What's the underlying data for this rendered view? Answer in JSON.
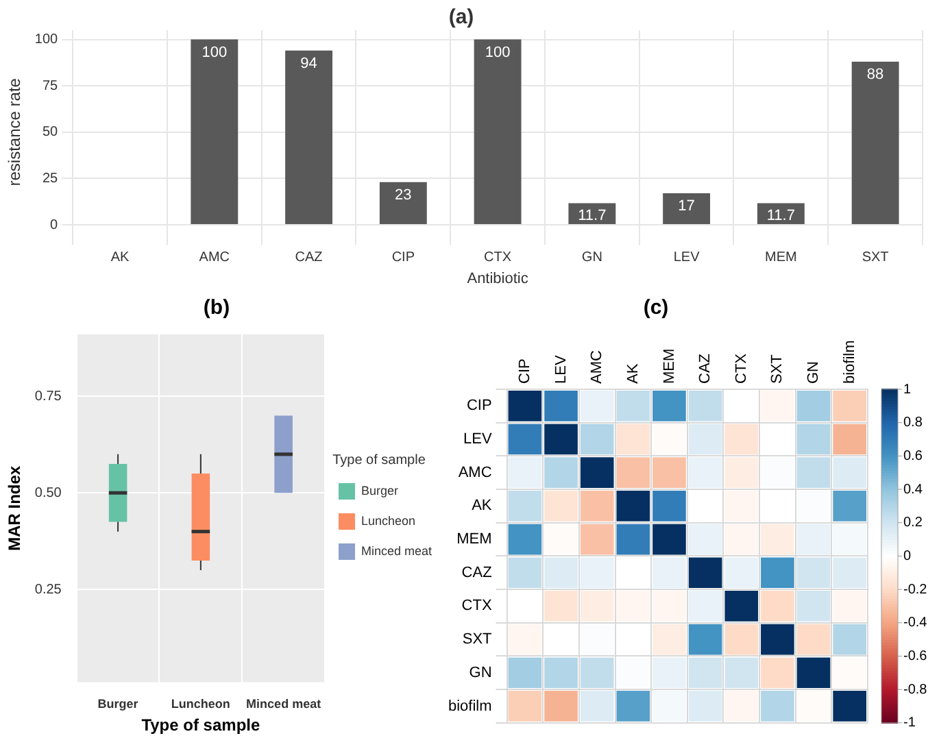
{
  "chart_data": [
    {
      "type": "bar",
      "title": "(a)",
      "xlabel": "Antibiotic",
      "ylabel": "resistance rate",
      "categories": [
        "AK",
        "AMC",
        "CAZ",
        "CIP",
        "CTX",
        "GN",
        "LEV",
        "MEM",
        "SXT"
      ],
      "values": [
        0,
        100,
        94,
        23,
        100,
        11.7,
        17,
        11.7,
        88
      ],
      "value_labels": [
        null,
        "100",
        "94",
        "23",
        "100",
        "11.7",
        "17",
        "11.7",
        "88"
      ],
      "color": "#595959",
      "ylim": [
        -5,
        105
      ],
      "yticks": [
        0,
        25,
        50,
        75,
        100
      ],
      "grid": true
    },
    {
      "type": "box",
      "title": "(b)",
      "xlabel": "Type of sample",
      "ylabel": "MAR Index",
      "legend_title": "Type of sample",
      "legend": "right",
      "categories": [
        "Burger",
        "Luncheon",
        "Minced meat"
      ],
      "series": [
        {
          "name": "Burger",
          "color": "#66c2a5",
          "boxes": [
            {
              "low": 0.4,
              "q1": 0.425,
              "median": 0.5,
              "q3": 0.575,
              "high": 0.6
            },
            null,
            null
          ]
        },
        {
          "name": "Luncheon",
          "color": "#fc8d62",
          "boxes": [
            null,
            {
              "low": 0.3,
              "q1": 0.325,
              "median": 0.4,
              "q3": 0.55,
              "high": 0.6
            },
            null
          ]
        },
        {
          "name": "Minced meat",
          "color": "#8da0cb",
          "boxes": [
            null,
            null,
            {
              "low": 0.5,
              "q1": 0.5,
              "median": 0.6,
              "q3": 0.7,
              "high": 0.7
            }
          ]
        }
      ],
      "ylim": [
        0.01,
        0.91
      ],
      "yticks": [
        {
          "value": 0.25,
          "label": "0.25"
        },
        {
          "value": 0.5,
          "label": "0.50"
        },
        {
          "value": 0.75,
          "label": "0.75"
        }
      ],
      "grid": true
    },
    {
      "type": "heatmap",
      "title": "(c)",
      "categories": [
        "CIP",
        "LEV",
        "AMC",
        "AK",
        "MEM",
        "CAZ",
        "CTX",
        "SXT",
        "GN",
        "biofilm"
      ],
      "y_categories": [
        "CIP",
        "LEV",
        "AMC",
        "AK",
        "MEM",
        "CAZ",
        "CTX",
        "SXT",
        "GN",
        "biofilm"
      ],
      "cells": [
        [
          1,
          0.7,
          0.1,
          0.25,
          0.6,
          0.25,
          0,
          -0.05,
          0.35,
          -0.25
        ],
        [
          0.7,
          1,
          0.3,
          -0.15,
          -0.02,
          0.15,
          -0.15,
          0,
          0.3,
          -0.35
        ],
        [
          0.1,
          0.3,
          1,
          -0.3,
          -0.3,
          0.1,
          -0.1,
          0.02,
          0.25,
          0.15
        ],
        [
          0.25,
          -0.15,
          -0.3,
          1,
          0.7,
          0,
          -0.05,
          0,
          0.02,
          0.55
        ],
        [
          0.6,
          -0.02,
          -0.3,
          0.7,
          1,
          0.1,
          -0.05,
          -0.1,
          0.1,
          0.05
        ],
        [
          0.25,
          0.15,
          0.1,
          0,
          0.1,
          1,
          0.1,
          0.6,
          0.2,
          0.15
        ],
        [
          0,
          -0.15,
          -0.1,
          -0.05,
          -0.05,
          0.1,
          1,
          -0.2,
          0.2,
          -0.05
        ],
        [
          -0.05,
          0,
          0.02,
          0,
          -0.1,
          0.6,
          -0.2,
          1,
          -0.2,
          0.3
        ],
        [
          0.35,
          0.3,
          0.25,
          0.02,
          0.1,
          0.2,
          0.2,
          -0.2,
          1,
          -0.02
        ],
        [
          -0.25,
          -0.35,
          0.15,
          0.55,
          0.05,
          0.15,
          -0.05,
          0.3,
          -0.02,
          1
        ]
      ],
      "grid": true,
      "clim": [
        -1,
        1
      ],
      "cticks": [
        -1,
        -0.8,
        -0.6,
        -0.4,
        -0.2,
        0,
        0.2,
        0.4,
        0.6,
        0.8,
        1
      ]
    }
  ]
}
